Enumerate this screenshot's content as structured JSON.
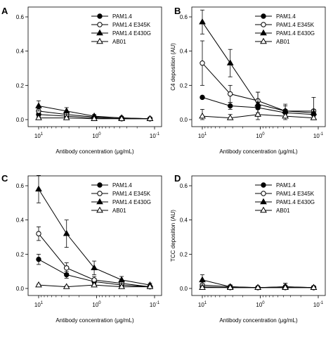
{
  "figure": {
    "legend_labels": [
      "PAM1.4",
      "PAM1.4 E345K",
      "PAM1.4 E430G",
      "AB01"
    ]
  },
  "chart_data": [
    {
      "panel": "A",
      "type": "line",
      "xscale": "log",
      "x_reversed": true,
      "xlabel": "Antibody concentration (μg/mL)",
      "ylabel": "",
      "ylim": [
        0,
        0.6
      ],
      "yticks": [
        0.0,
        0.2,
        0.4,
        0.6
      ],
      "xticks": [
        10,
        1,
        0.1
      ],
      "x": [
        10,
        3.3,
        1.1,
        0.37,
        0.12
      ],
      "series": [
        {
          "name": "PAM1.4",
          "marker": "filled-circle",
          "values": [
            0.03,
            0.02,
            0.01,
            0.005,
            0.005
          ],
          "errors": [
            0.01,
            0.01,
            0.005,
            0.005,
            0.005
          ]
        },
        {
          "name": "PAM1.4 E345K",
          "marker": "open-circle",
          "values": [
            0.05,
            0.03,
            0.015,
            0.01,
            0.005
          ],
          "errors": [
            0.015,
            0.01,
            0.005,
            0.005,
            0.005
          ]
        },
        {
          "name": "PAM1.4 E430G",
          "marker": "filled-triangle",
          "values": [
            0.08,
            0.05,
            0.02,
            0.01,
            0.005
          ],
          "errors": [
            0.03,
            0.02,
            0.01,
            0.005,
            0.005
          ]
        },
        {
          "name": "AB01",
          "marker": "open-triangle",
          "values": [
            0.01,
            0.01,
            0.005,
            0.005,
            0.005
          ],
          "errors": [
            0.005,
            0.005,
            0.005,
            0.005,
            0.005
          ]
        }
      ]
    },
    {
      "panel": "B",
      "type": "line",
      "xscale": "log",
      "x_reversed": true,
      "xlabel": "Antibody concentration (μg/mL)",
      "ylabel": "C4 deposition (AU)",
      "ylim": [
        0,
        0.6
      ],
      "yticks": [
        0.0,
        0.2,
        0.4,
        0.6
      ],
      "xticks": [
        10,
        1,
        0.1
      ],
      "x": [
        10,
        3.3,
        1.1,
        0.37,
        0.12
      ],
      "series": [
        {
          "name": "PAM1.4",
          "marker": "filled-circle",
          "values": [
            0.13,
            0.08,
            0.07,
            0.04,
            0.03
          ],
          "errors": [
            0.0,
            0.02,
            0.03,
            0.02,
            0.02
          ]
        },
        {
          "name": "PAM1.4 E345K",
          "marker": "open-circle",
          "values": [
            0.33,
            0.15,
            0.11,
            0.05,
            0.05
          ],
          "errors": [
            0.13,
            0.05,
            0.05,
            0.04,
            0.08
          ]
        },
        {
          "name": "PAM1.4 E430G",
          "marker": "filled-triangle",
          "values": [
            0.57,
            0.33,
            0.09,
            0.05,
            0.04
          ],
          "errors": [
            0.07,
            0.08,
            0.07,
            0.03,
            0.02
          ]
        },
        {
          "name": "AB01",
          "marker": "open-triangle",
          "values": [
            0.02,
            0.01,
            0.03,
            0.02,
            0.01
          ],
          "errors": [
            0.04,
            0.02,
            0.04,
            0.03,
            0.02
          ]
        }
      ]
    },
    {
      "panel": "C",
      "type": "line",
      "xscale": "log",
      "x_reversed": true,
      "xlabel": "Antibody concentration (μg/mL)",
      "ylabel": "",
      "ylim": [
        0,
        0.6
      ],
      "yticks": [
        0.0,
        0.2,
        0.4,
        0.6
      ],
      "xticks": [
        10,
        1,
        0.1
      ],
      "x": [
        10,
        3.3,
        1.1,
        0.37,
        0.12
      ],
      "series": [
        {
          "name": "PAM1.4",
          "marker": "filled-circle",
          "values": [
            0.17,
            0.08,
            0.04,
            0.02,
            0.01
          ],
          "errors": [
            0.03,
            0.02,
            0.02,
            0.01,
            0.01
          ]
        },
        {
          "name": "PAM1.4 E345K",
          "marker": "open-circle",
          "values": [
            0.32,
            0.12,
            0.05,
            0.03,
            0.01
          ],
          "errors": [
            0.04,
            0.03,
            0.02,
            0.01,
            0.01
          ]
        },
        {
          "name": "PAM1.4 E430G",
          "marker": "filled-triangle",
          "values": [
            0.58,
            0.32,
            0.12,
            0.05,
            0.02
          ],
          "errors": [
            0.08,
            0.08,
            0.04,
            0.02,
            0.01
          ]
        },
        {
          "name": "AB01",
          "marker": "open-triangle",
          "values": [
            0.02,
            0.01,
            0.02,
            0.01,
            0.01
          ],
          "errors": [
            0.005,
            0.005,
            0.005,
            0.005,
            0.005
          ]
        }
      ]
    },
    {
      "panel": "D",
      "type": "line",
      "xscale": "log",
      "x_reversed": true,
      "xlabel": "Antibody concentration (μg/mL)",
      "ylabel": "TCC deposition (AU)",
      "ylim": [
        0,
        0.6
      ],
      "yticks": [
        0.0,
        0.2,
        0.4,
        0.6
      ],
      "xticks": [
        10,
        1,
        0.1
      ],
      "x": [
        10,
        3.3,
        1.1,
        0.37,
        0.12
      ],
      "series": [
        {
          "name": "PAM1.4",
          "marker": "filled-circle",
          "values": [
            0.01,
            0.005,
            0.005,
            0.005,
            0.005
          ],
          "errors": [
            0.01,
            0.01,
            0.005,
            0.005,
            0.005
          ]
        },
        {
          "name": "PAM1.4 E345K",
          "marker": "open-circle",
          "values": [
            0.02,
            0.01,
            0.005,
            0.01,
            0.005
          ],
          "errors": [
            0.02,
            0.01,
            0.005,
            0.02,
            0.01
          ]
        },
        {
          "name": "PAM1.4 E430G",
          "marker": "filled-triangle",
          "values": [
            0.05,
            0.01,
            0.005,
            0.01,
            0.005
          ],
          "errors": [
            0.03,
            0.01,
            0.005,
            0.02,
            0.01
          ]
        },
        {
          "name": "AB01",
          "marker": "open-triangle",
          "values": [
            0.005,
            0.005,
            0.005,
            0.005,
            0.005
          ],
          "errors": [
            0.005,
            0.005,
            0.005,
            0.005,
            0.005
          ]
        }
      ]
    }
  ]
}
